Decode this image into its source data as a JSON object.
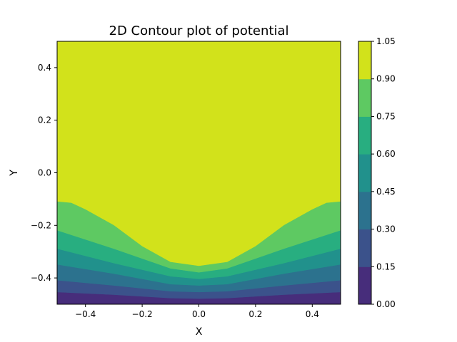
{
  "chart_data": {
    "type": "contour",
    "title": "2D Contour plot of potential",
    "xlabel": "X",
    "ylabel": "Y",
    "xlim": [
      -0.5,
      0.5
    ],
    "ylim": [
      -0.5,
      0.5
    ],
    "x_ticks": [
      -0.4,
      -0.2,
      0.0,
      0.2,
      0.4
    ],
    "x_tick_labels": [
      "−0.4",
      "−0.2",
      "0.0",
      "0.2",
      "0.4"
    ],
    "y_ticks": [
      -0.4,
      -0.2,
      0.0,
      0.2,
      0.4
    ],
    "y_tick_labels": [
      "−0.4",
      "−0.2",
      "0.0",
      "0.2",
      "0.4"
    ],
    "colormap": "viridis",
    "levels": [
      0.0,
      0.15,
      0.3,
      0.45,
      0.6,
      0.75,
      0.9,
      1.05
    ],
    "colorbar_tick_labels": [
      "0.00",
      "0.15",
      "0.30",
      "0.45",
      "0.60",
      "0.75",
      "0.90",
      "1.05"
    ],
    "band_colors": [
      "#472d7b",
      "#3b528b",
      "#2c728e",
      "#21918c",
      "#28ae80",
      "#5ec962",
      "#d2e21b"
    ],
    "contour_lines": [
      {
        "level": 0.15,
        "x": [
          -0.5,
          -0.3,
          -0.1,
          0.0,
          0.1,
          0.3,
          0.5
        ],
        "y": [
          -0.455,
          -0.465,
          -0.478,
          -0.48,
          -0.478,
          -0.465,
          -0.455
        ]
      },
      {
        "level": 0.3,
        "x": [
          -0.5,
          -0.3,
          -0.1,
          0.0,
          0.1,
          0.3,
          0.5
        ],
        "y": [
          -0.41,
          -0.43,
          -0.452,
          -0.455,
          -0.452,
          -0.43,
          -0.41
        ]
      },
      {
        "level": 0.45,
        "x": [
          -0.5,
          -0.3,
          -0.1,
          0.0,
          0.1,
          0.3,
          0.5
        ],
        "y": [
          -0.35,
          -0.385,
          -0.425,
          -0.43,
          -0.425,
          -0.385,
          -0.35
        ]
      },
      {
        "level": 0.6,
        "x": [
          -0.5,
          -0.3,
          -0.1,
          0.0,
          0.1,
          0.3,
          0.5
        ],
        "y": [
          -0.29,
          -0.345,
          -0.395,
          -0.405,
          -0.395,
          -0.345,
          -0.29
        ]
      },
      {
        "level": 0.75,
        "x": [
          -0.5,
          -0.3,
          -0.1,
          0.0,
          0.1,
          0.3,
          0.5
        ],
        "y": [
          -0.22,
          -0.29,
          -0.365,
          -0.38,
          -0.365,
          -0.29,
          -0.22
        ]
      },
      {
        "level": 0.9,
        "x": [
          -0.5,
          -0.45,
          -0.4,
          -0.3,
          -0.2,
          -0.1,
          0.0,
          0.1,
          0.2,
          0.3,
          0.4,
          0.45,
          0.5
        ],
        "y": [
          -0.11,
          -0.115,
          -0.14,
          -0.2,
          -0.28,
          -0.34,
          -0.355,
          -0.34,
          -0.28,
          -0.2,
          -0.14,
          -0.115,
          -0.11
        ]
      }
    ]
  }
}
